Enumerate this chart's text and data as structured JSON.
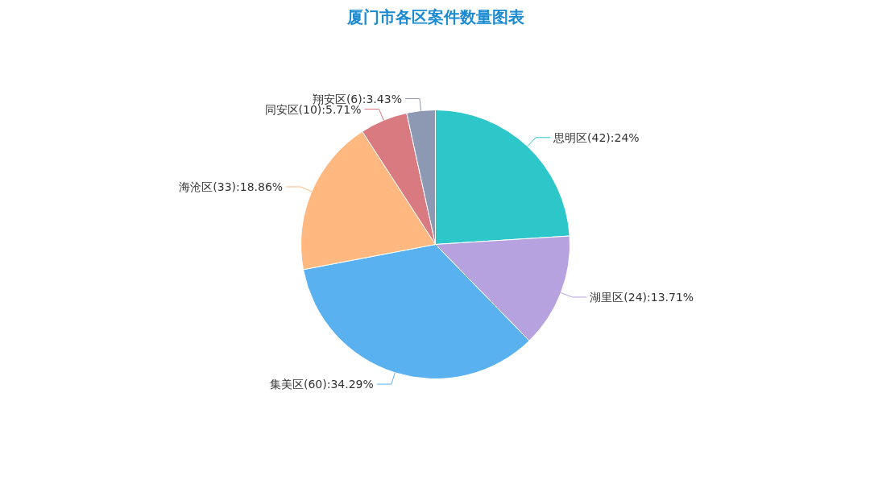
{
  "chart_data": {
    "type": "pie",
    "title": "厦门市各区案件数量图表",
    "categories": [
      "思明区",
      "湖里区",
      "集美区",
      "海沧区",
      "同安区",
      "翔安区"
    ],
    "values": [
      42,
      24,
      60,
      33,
      10,
      6
    ],
    "colors": [
      "#2ec7c9",
      "#b6a2de",
      "#5ab1ef",
      "#ffb980",
      "#d87a80",
      "#8d98b3"
    ],
    "value_labels": [
      "(42):24%",
      "(24):13.71%",
      "(60):34.29%",
      "(33):18.86%",
      "(10):5.71%",
      "(6):3.43%"
    ]
  }
}
